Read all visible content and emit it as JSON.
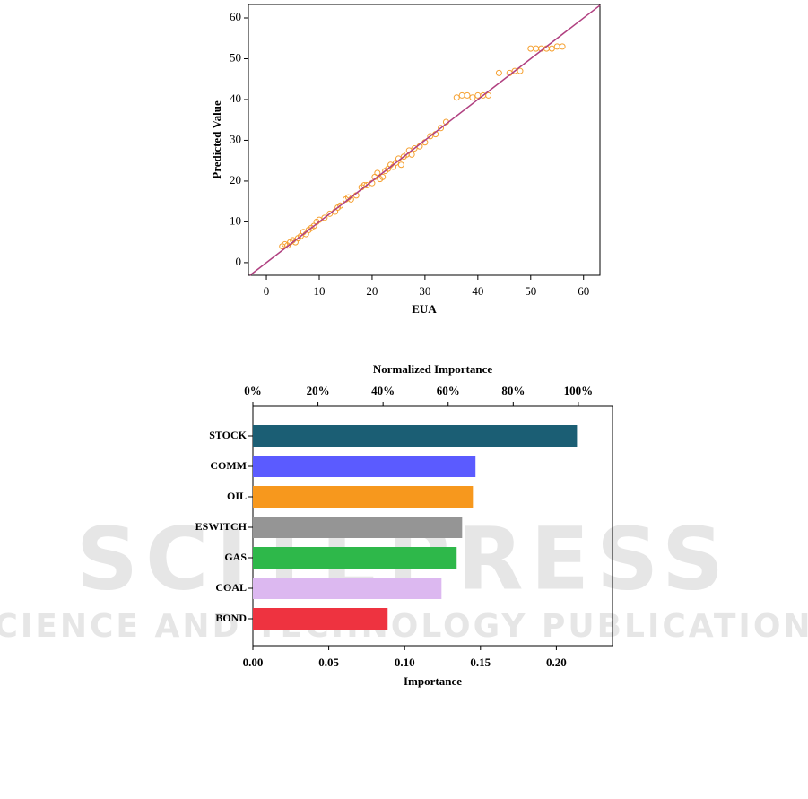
{
  "chart_data": [
    {
      "type": "scatter",
      "xlabel": "EUA",
      "ylabel": "Predicted Value",
      "color": "#f5a030",
      "reference_line_color": "#b04080",
      "x": [
        3,
        3.5,
        4,
        4.5,
        5,
        5.5,
        6,
        6.5,
        7,
        7.5,
        8,
        8.5,
        9,
        9.5,
        10,
        11,
        12,
        13,
        13.5,
        14,
        15,
        15.5,
        16,
        17,
        18,
        18.5,
        19,
        20,
        20.5,
        21,
        21.5,
        22,
        22.5,
        23,
        23.5,
        24,
        24.5,
        25,
        25.5,
        26,
        26.5,
        27,
        27.5,
        28,
        29,
        30,
        31,
        32,
        33,
        34,
        36,
        37,
        38,
        39,
        40,
        41,
        42,
        44,
        46,
        47,
        48,
        50,
        51,
        52,
        53,
        54,
        55,
        56
      ],
      "y": [
        4,
        4.5,
        4.2,
        5,
        5.5,
        5,
        6,
        6.5,
        7.5,
        7,
        8,
        8.5,
        9,
        10,
        10.5,
        11,
        12,
        12.5,
        13.5,
        14,
        15.5,
        16,
        15.5,
        16.5,
        18.5,
        19,
        19,
        19.5,
        21,
        22,
        20.5,
        21,
        22.5,
        23,
        24,
        23.5,
        24.5,
        25.5,
        24,
        26,
        26.5,
        27.5,
        26.5,
        28,
        28.5,
        29.5,
        31,
        31.5,
        33,
        34.5,
        40.5,
        41,
        41,
        40.5,
        41,
        41,
        41,
        46.5,
        46.5,
        47,
        47,
        52.5,
        52.5,
        52.5,
        52.5,
        52.5,
        53,
        53
      ],
      "xlim": [
        -3.4,
        63.1
      ],
      "ylim": [
        -3.1,
        63.3
      ],
      "xticks": [
        0,
        10,
        20,
        30,
        40,
        50,
        60
      ],
      "yticks": [
        0,
        10,
        20,
        30,
        40,
        50,
        60
      ]
    },
    {
      "type": "hbar",
      "title": "Normalized Importance",
      "xlabel": "Importance",
      "categories": [
        "STOCK",
        "COMM",
        "OIL",
        "ESWITCH",
        "GAS",
        "COAL",
        "BOND"
      ],
      "values": [
        0.2136,
        0.1467,
        0.145,
        0.1379,
        0.1343,
        0.1243,
        0.0888
      ],
      "colors": [
        "#1b5e74",
        "#5b5bff",
        "#f7981d",
        "#959595",
        "#2eb84a",
        "#dcb8f0",
        "#ee3340"
      ],
      "xlim": [
        0,
        0.237
      ],
      "xticks": [
        {
          "value": 0,
          "label": "0.00"
        },
        {
          "value": 0.05,
          "label": "0.05"
        },
        {
          "value": 0.1,
          "label": "0.10"
        },
        {
          "value": 0.15,
          "label": "0.15"
        },
        {
          "value": 0.2,
          "label": "0.20"
        }
      ],
      "x2lim": [
        0,
        110.5
      ],
      "x2ticks": [
        {
          "value": 0,
          "label": "0%"
        },
        {
          "value": 20,
          "label": "20%"
        },
        {
          "value": 40,
          "label": "40%"
        },
        {
          "value": 60,
          "label": "60%"
        },
        {
          "value": 80,
          "label": "80%"
        },
        {
          "value": 100,
          "label": "100%"
        }
      ]
    }
  ],
  "watermark": {
    "title": "SCITEPRESS",
    "subtitle": "SCIENCE AND TECHNOLOGY PUBLICATIONS"
  }
}
